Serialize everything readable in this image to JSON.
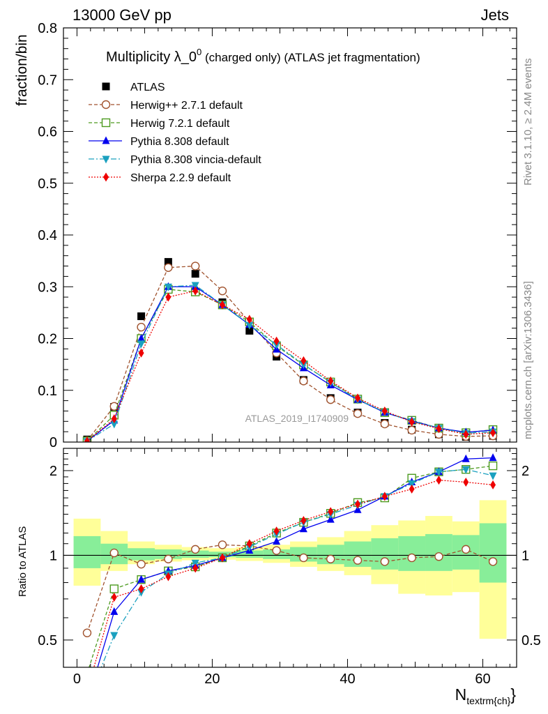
{
  "header": {
    "left": "13000 GeV pp",
    "right": "Jets"
  },
  "side_labels": {
    "rivet": "Rivet 3.1.10, ≥ 2.4M events",
    "mcplots": "mcplots.cern.ch [arXiv:1306.3436]"
  },
  "chart_data": {
    "type": "line",
    "title_main": "Multiplicity λ_0",
    "title_sup": "0",
    "title_rest": " (charged only) (ATLAS jet fragmentation)",
    "watermark": "ATLAS_2019_I1740909",
    "ylabel_top": "fraction/bin",
    "ylabel_bottom": "Ratio to ATLAS",
    "xlabel_main": "N",
    "xlabel_sub": "textrm{ch}",
    "xlabel_close": "}",
    "xlim": [
      -2,
      65
    ],
    "ylim_top": [
      0,
      0.8
    ],
    "ylim_bottom_log": [
      0.4,
      2.4
    ],
    "x_ticks": [
      "0",
      "20",
      "40",
      "60"
    ],
    "y_ticks_top": [
      "0",
      "0.1",
      "0.2",
      "0.3",
      "0.4",
      "0.5",
      "0.6",
      "0.7",
      "0.8"
    ],
    "y_ticks_bottom": [
      "0.5",
      "1",
      "2"
    ],
    "x": [
      1.5,
      5.5,
      9.5,
      13.5,
      17.5,
      21.5,
      25.5,
      29.5,
      33.5,
      37.5,
      41.5,
      45.5,
      49.5,
      53.5,
      57.5,
      61.5
    ],
    "bands": {
      "yellow": [
        [
          0.78,
          1.35
        ],
        [
          0.88,
          1.22
        ],
        [
          0.93,
          1.12
        ],
        [
          0.95,
          1.09
        ],
        [
          0.96,
          1.07
        ],
        [
          0.965,
          1.06
        ],
        [
          0.955,
          1.07
        ],
        [
          0.94,
          1.09
        ],
        [
          0.91,
          1.12
        ],
        [
          0.88,
          1.16
        ],
        [
          0.85,
          1.22
        ],
        [
          0.79,
          1.28
        ],
        [
          0.73,
          1.33
        ],
        [
          0.72,
          1.38
        ],
        [
          0.74,
          1.32
        ],
        [
          0.505,
          1.57
        ]
      ],
      "green": [
        [
          0.9,
          1.17
        ],
        [
          0.93,
          1.1
        ],
        [
          0.96,
          1.06
        ],
        [
          0.97,
          1.05
        ],
        [
          0.98,
          1.04
        ],
        [
          0.985,
          1.03
        ],
        [
          0.98,
          1.04
        ],
        [
          0.97,
          1.05
        ],
        [
          0.95,
          1.07
        ],
        [
          0.93,
          1.09
        ],
        [
          0.91,
          1.12
        ],
        [
          0.89,
          1.15
        ],
        [
          0.88,
          1.17
        ],
        [
          0.88,
          1.19
        ],
        [
          0.89,
          1.18
        ],
        [
          0.8,
          1.3
        ]
      ]
    },
    "data_series": {
      "name": "ATLAS",
      "values": [
        0.005,
        0.068,
        0.243,
        0.348,
        0.325,
        0.27,
        0.215,
        0.165,
        0.12,
        0.085,
        0.057,
        0.037,
        0.024,
        0.015,
        0.01,
        0.012
      ]
    },
    "series": [
      {
        "name": "Herwig++ 2.7.1 default",
        "color": "#a0522d",
        "marker": "open-circle",
        "dash": "5,3",
        "values": [
          0.0027,
          0.069,
          0.222,
          0.337,
          0.34,
          0.292,
          0.232,
          0.172,
          0.118,
          0.082,
          0.055,
          0.035,
          0.023,
          0.015,
          0.011,
          0.012
        ],
        "ratio": [
          0.53,
          1.02,
          0.93,
          0.97,
          1.05,
          1.09,
          1.08,
          1.04,
          0.98,
          0.97,
          0.96,
          0.95,
          0.98,
          0.99,
          1.05,
          0.95
        ]
      },
      {
        "name": "Herwig 7.2.1 default",
        "color": "#4c9a1f",
        "marker": "open-square",
        "dash": "5,3",
        "values": [
          0.0019,
          0.052,
          0.2,
          0.295,
          0.29,
          0.265,
          0.232,
          0.186,
          0.149,
          0.116,
          0.083,
          0.057,
          0.042,
          0.027,
          0.018,
          0.024
        ],
        "ratio": [
          0.38,
          0.76,
          0.82,
          0.88,
          0.91,
          0.98,
          1.08,
          1.2,
          1.31,
          1.41,
          1.54,
          1.6,
          1.88,
          1.98,
          2.02,
          2.08
        ]
      },
      {
        "name": "Pythia 8.308 default",
        "color": "#0000ee",
        "marker": "triangle-up",
        "dash": "",
        "values": [
          0.0017,
          0.042,
          0.2,
          0.3,
          0.3,
          0.265,
          0.227,
          0.179,
          0.143,
          0.11,
          0.082,
          0.057,
          0.041,
          0.027,
          0.019,
          0.023
        ],
        "ratio": [
          0.3,
          0.63,
          0.82,
          0.88,
          0.92,
          0.98,
          1.04,
          1.12,
          1.24,
          1.34,
          1.45,
          1.62,
          1.82,
          1.98,
          2.2,
          2.22
        ]
      },
      {
        "name": "Pythia 8.308 vincia-default",
        "color": "#1aa0bf",
        "marker": "triangle-down",
        "dash": "8,3,2,3",
        "values": [
          0.0016,
          0.035,
          0.19,
          0.3,
          0.303,
          0.265,
          0.226,
          0.188,
          0.15,
          0.115,
          0.082,
          0.058,
          0.04,
          0.027,
          0.017,
          0.02
        ],
        "ratio": [
          0.3,
          0.52,
          0.74,
          0.86,
          0.94,
          0.98,
          1.07,
          1.19,
          1.31,
          1.4,
          1.51,
          1.62,
          1.8,
          1.98,
          2.02,
          1.92
        ]
      },
      {
        "name": "Sherpa 2.2.9 default",
        "color": "#ee0000",
        "marker": "diamond",
        "dash": "2,2",
        "values": [
          0.0018,
          0.045,
          0.172,
          0.28,
          0.292,
          0.265,
          0.237,
          0.195,
          0.157,
          0.118,
          0.085,
          0.06,
          0.039,
          0.026,
          0.015,
          0.018
        ],
        "ratio": [
          0.33,
          0.71,
          0.76,
          0.84,
          0.9,
          0.98,
          1.1,
          1.22,
          1.33,
          1.43,
          1.52,
          1.62,
          1.72,
          1.85,
          1.82,
          1.78
        ]
      }
    ],
    "legend_position": "top-left",
    "grid": false
  }
}
